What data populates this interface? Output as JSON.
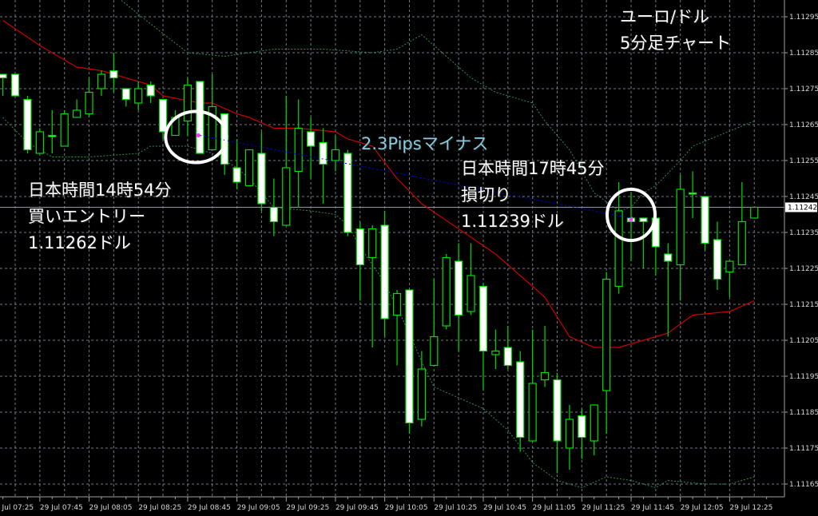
{
  "chart_data": {
    "type": "candlestick",
    "symbol_label": "ユーロ/ドル",
    "timeframe_label": "5分足チャート",
    "date_label": "29 Jul",
    "ylim": [
      1.1116,
      1.113
    ],
    "y_ticks": [
      1.11295,
      1.11285,
      1.11275,
      1.11265,
      1.11255,
      1.11245,
      1.11235,
      1.11225,
      1.11215,
      1.11205,
      1.11195,
      1.11185,
      1.11175,
      1.11165
    ],
    "x_ticks": [
      "29 Jul 07:25",
      "29 Jul 07:45",
      "29 Jul 08:05",
      "29 Jul 08:25",
      "29 Jul 08:45",
      "29 Jul 09:05",
      "29 Jul 09:25",
      "29 Jul 09:45",
      "29 Jul 10:05",
      "29 Jul 10:25",
      "29 Jul 10:45",
      "29 Jul 11:05",
      "29 Jul 11:25",
      "29 Jul 11:45",
      "29 Jul 12:05",
      "29 Jul 12:25"
    ],
    "current_price": "1.11242",
    "grid": true,
    "colors": {
      "background": "#000000",
      "bull_body": "#000000",
      "bear_body": "#ffffff",
      "candle_outline": "#00dd00",
      "ma": "#cc0000",
      "bands": "#2e8b57",
      "trade_line": "#0000ff",
      "grid": "#6e7a86",
      "current_price_line": "#8a96a2"
    },
    "candles": [
      [
        "07:30",
        1.11279,
        1.11279,
        1.11273,
        1.11278
      ],
      [
        "07:35",
        1.11279,
        1.11279,
        1.11273,
        1.11273
      ],
      [
        "07:40",
        1.11272,
        1.11273,
        1.11257,
        1.11258
      ],
      [
        "07:45",
        1.11257,
        1.11264,
        1.11257,
        1.11263
      ],
      [
        "07:50",
        1.11262,
        1.11269,
        1.11257,
        1.11262
      ],
      [
        "07:55",
        1.11259,
        1.11269,
        1.11259,
        1.11268
      ],
      [
        "08:00",
        1.11267,
        1.11272,
        1.11267,
        1.11269
      ],
      [
        "08:05",
        1.11268,
        1.11278,
        1.11267,
        1.11274
      ],
      [
        "08:10",
        1.11275,
        1.1128,
        1.11273,
        1.11279
      ],
      [
        "08:15",
        1.1128,
        1.11285,
        1.11274,
        1.11278
      ],
      [
        "08:20",
        1.11275,
        1.11275,
        1.1127,
        1.11272
      ],
      [
        "08:25",
        1.11271,
        1.11277,
        1.11269,
        1.11275
      ],
      [
        "08:30",
        1.11276,
        1.11277,
        1.11271,
        1.11273
      ],
      [
        "08:35",
        1.11272,
        1.11272,
        1.11261,
        1.11263
      ],
      [
        "08:40",
        1.11262,
        1.11269,
        1.11262,
        1.11267
      ],
      [
        "08:45",
        1.11266,
        1.11278,
        1.11262,
        1.11276
      ],
      [
        "08:50",
        1.11277,
        1.11277,
        1.11257,
        1.11257
      ],
      [
        "08:55",
        1.11258,
        1.11279,
        1.11258,
        1.1127
      ],
      [
        "09:00",
        1.11268,
        1.11268,
        1.11251,
        1.11254
      ],
      [
        "09:05",
        1.11253,
        1.11261,
        1.11247,
        1.11249
      ],
      [
        "09:10",
        1.11248,
        1.11258,
        1.11248,
        1.11258
      ],
      [
        "09:15",
        1.11257,
        1.11263,
        1.11241,
        1.11243
      ],
      [
        "09:20",
        1.11242,
        1.1125,
        1.11234,
        1.11238
      ],
      [
        "09:25",
        1.11237,
        1.11273,
        1.11237,
        1.11253
      ],
      [
        "09:30",
        1.11252,
        1.11272,
        1.11242,
        1.11264
      ],
      [
        "09:35",
        1.11263,
        1.11267,
        1.1125,
        1.11259
      ],
      [
        "09:40",
        1.1126,
        1.11264,
        1.11243,
        1.11254
      ],
      [
        "09:45",
        1.11255,
        1.11262,
        1.11252,
        1.11258
      ],
      [
        "09:50",
        1.11257,
        1.11258,
        1.11234,
        1.11235
      ],
      [
        "09:55",
        1.11236,
        1.11238,
        1.11216,
        1.11226
      ],
      [
        "10:00",
        1.11228,
        1.11237,
        1.11203,
        1.11236
      ],
      [
        "10:05",
        1.11237,
        1.11241,
        1.11206,
        1.11211
      ],
      [
        "10:10",
        1.11212,
        1.11219,
        1.11198,
        1.11218
      ],
      [
        "10:15",
        1.11219,
        1.11219,
        1.11179,
        1.11182
      ],
      [
        "10:20",
        1.11183,
        1.11202,
        1.11181,
        1.11197
      ],
      [
        "10:25",
        1.11198,
        1.11222,
        1.11198,
        1.11206
      ],
      [
        "10:30",
        1.11209,
        1.11229,
        1.11208,
        1.11228
      ],
      [
        "10:35",
        1.11227,
        1.11232,
        1.11202,
        1.11212
      ],
      [
        "10:40",
        1.11213,
        1.11232,
        1.11212,
        1.11223
      ],
      [
        "10:45",
        1.1122,
        1.11221,
        1.11191,
        1.11202
      ],
      [
        "10:50",
        1.11201,
        1.11208,
        1.11197,
        1.11202
      ],
      [
        "10:55",
        1.11203,
        1.11209,
        1.11197,
        1.11198
      ],
      [
        "11:00",
        1.11199,
        1.11202,
        1.11174,
        1.11178
      ],
      [
        "11:05",
        1.11177,
        1.11208,
        1.11177,
        1.11193
      ],
      [
        "11:10",
        1.11194,
        1.11209,
        1.11192,
        1.11196
      ],
      [
        "11:15",
        1.11194,
        1.11196,
        1.11168,
        1.11177
      ],
      [
        "11:20",
        1.11175,
        1.11187,
        1.11169,
        1.11183
      ],
      [
        "11:25",
        1.11184,
        1.11186,
        1.11172,
        1.11178
      ],
      [
        "11:30",
        1.11177,
        1.11187,
        1.11173,
        1.11187
      ],
      [
        "11:35",
        1.11191,
        1.11224,
        1.11179,
        1.11222
      ],
      [
        "11:40",
        1.1122,
        1.11249,
        1.11218,
        1.11241
      ],
      [
        "11:45",
        1.11239,
        1.11246,
        1.11227,
        1.11238
      ],
      [
        "11:50",
        1.11239,
        1.11239,
        1.11225,
        1.11238
      ],
      [
        "11:55",
        1.11239,
        1.11239,
        1.11223,
        1.11231
      ],
      [
        "12:00",
        1.11229,
        1.11232,
        1.11206,
        1.11227
      ],
      [
        "12:05",
        1.11226,
        1.11251,
        1.11216,
        1.11247
      ],
      [
        "12:10",
        1.11246,
        1.11252,
        1.11239,
        1.11246
      ],
      [
        "12:15",
        1.11245,
        1.11245,
        1.1123,
        1.11232
      ],
      [
        "12:20",
        1.11233,
        1.11238,
        1.11219,
        1.11222
      ],
      [
        "12:25",
        1.11224,
        1.11227,
        1.11217,
        1.11227
      ],
      [
        "12:30",
        1.11226,
        1.11249,
        1.11226,
        1.11238
      ],
      [
        "12:35",
        1.11239,
        1.11242,
        1.11239,
        1.11242
      ]
    ],
    "moving_average": [
      [
        "07:30",
        1.11294
      ],
      [
        "07:45",
        1.11287
      ],
      [
        "08:00",
        1.11281
      ],
      [
        "08:10",
        1.1128
      ],
      [
        "08:30",
        1.11276
      ],
      [
        "08:35",
        1.11273
      ],
      [
        "08:50",
        1.11271
      ],
      [
        "08:55",
        1.11271
      ],
      [
        "09:05",
        1.11268
      ],
      [
        "09:10",
        1.11267
      ],
      [
        "09:20",
        1.11264
      ],
      [
        "09:30",
        1.11264
      ],
      [
        "09:45",
        1.11263
      ],
      [
        "09:50",
        1.11261
      ],
      [
        "10:00",
        1.11259
      ],
      [
        "10:10",
        1.1125
      ],
      [
        "10:20",
        1.11243
      ],
      [
        "10:35",
        1.11236
      ],
      [
        "10:50",
        1.11229
      ],
      [
        "11:00",
        1.11223
      ],
      [
        "11:10",
        1.11217
      ],
      [
        "11:20",
        1.11206
      ],
      [
        "11:30",
        1.11203
      ],
      [
        "11:40",
        1.11203
      ],
      [
        "11:50",
        1.11205
      ],
      [
        "12:00",
        1.11207
      ],
      [
        "12:10",
        1.11212
      ],
      [
        "12:25",
        1.11213
      ],
      [
        "12:35",
        1.11216
      ]
    ],
    "upper_band": [
      [
        "08:10",
        1.11304
      ],
      [
        "08:30",
        1.11293
      ],
      [
        "08:45",
        1.11285
      ],
      [
        "09:00",
        1.11284
      ],
      [
        "09:20",
        1.11286
      ],
      [
        "09:40",
        1.11286
      ],
      [
        "10:00",
        1.11285
      ],
      [
        "10:10",
        1.11286
      ],
      [
        "10:20",
        1.1129
      ],
      [
        "10:25",
        1.11287
      ],
      [
        "10:40",
        1.11278
      ],
      [
        "10:50",
        1.11274
      ],
      [
        "11:05",
        1.11271
      ],
      [
        "11:10",
        1.11266
      ],
      [
        "11:20",
        1.11258
      ],
      [
        "11:30",
        1.11246
      ],
      [
        "11:40",
        1.11241
      ],
      [
        "11:45",
        1.11242
      ],
      [
        "11:50",
        1.11246
      ],
      [
        "11:55",
        1.11248
      ],
      [
        "12:05",
        1.11255
      ],
      [
        "12:10",
        1.11259
      ],
      [
        "12:35",
        1.11266
      ]
    ],
    "lower_band": [
      [
        "07:30",
        1.11267
      ],
      [
        "07:40",
        1.1126
      ],
      [
        "07:50",
        1.11256
      ],
      [
        "08:05",
        1.11256
      ],
      [
        "08:25",
        1.11257
      ],
      [
        "08:30",
        1.11259
      ],
      [
        "08:45",
        1.11259
      ],
      [
        "08:55",
        1.11257
      ],
      [
        "09:05",
        1.11253
      ],
      [
        "09:10",
        1.1125
      ],
      [
        "09:15",
        1.11246
      ],
      [
        "09:20",
        1.11242
      ],
      [
        "09:35",
        1.11241
      ],
      [
        "09:45",
        1.1124
      ],
      [
        "09:50",
        1.11237
      ],
      [
        "09:55",
        1.11231
      ],
      [
        "10:05",
        1.11221
      ],
      [
        "10:15",
        1.11207
      ],
      [
        "10:20",
        1.11199
      ],
      [
        "10:25",
        1.11192
      ],
      [
        "10:35",
        1.11189
      ],
      [
        "10:45",
        1.11186
      ],
      [
        "10:55",
        1.1118
      ],
      [
        "11:05",
        1.11171
      ],
      [
        "11:15",
        1.11166
      ],
      [
        "11:25",
        1.11164
      ],
      [
        "11:35",
        1.11167
      ],
      [
        "11:45",
        1.11166
      ],
      [
        "11:55",
        1.11164
      ],
      [
        "12:00",
        1.11166
      ],
      [
        "12:15",
        1.11165
      ],
      [
        "12:25",
        1.11165
      ],
      [
        "12:35",
        1.11167
      ]
    ],
    "trade": {
      "entry": {
        "time": "08:50",
        "price": 1.11262
      },
      "exit": {
        "time": "11:45",
        "price": 1.11239
      }
    }
  },
  "annotations": {
    "title_line1": "ユーロ/ドル",
    "title_line2": "5分足チャート",
    "result": "2.3Pipsマイナス",
    "exit_line1": "日本時間17時45分",
    "exit_line2": "損切り",
    "exit_line3": "1.11239ドル",
    "entry_line1": "日本時間14時54分",
    "entry_line2": "買いエントリー",
    "entry_line3": "1.11262ドル"
  }
}
